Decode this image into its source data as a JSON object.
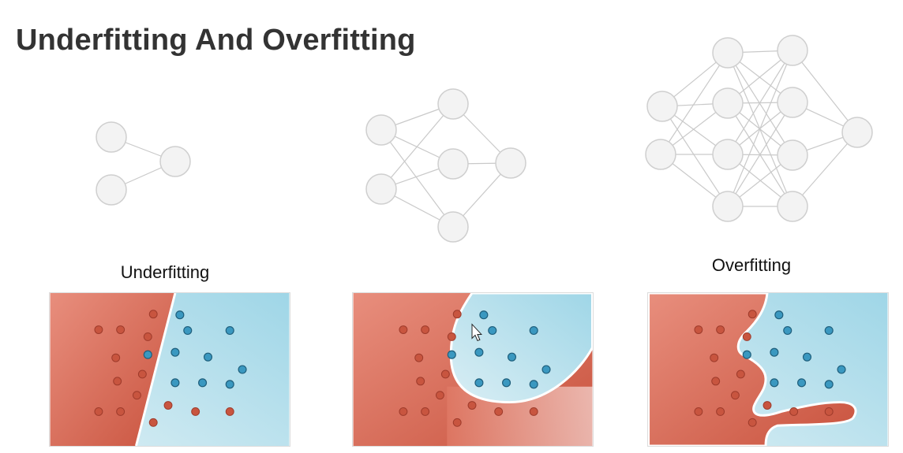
{
  "slide": {
    "title": "Underfitting And Overfitting"
  },
  "labels": {
    "underfitting": "Underfitting",
    "middle": "",
    "overfitting": "Overfitting"
  },
  "networks": [
    {
      "name": "small-network",
      "layers": [
        2,
        1
      ]
    },
    {
      "name": "medium-network",
      "layers": [
        2,
        3,
        1
      ]
    },
    {
      "name": "large-network",
      "layers": [
        2,
        4,
        4,
        1
      ]
    }
  ],
  "colors": {
    "red_class": "#c8553f",
    "blue_class": "#3a98c0",
    "red_region": "#e07a66",
    "blue_region": "#a8dcea",
    "node_fill": "#f3f3f3",
    "edge": "#c9c9c9"
  },
  "panels": [
    {
      "name": "underfitting-panel",
      "boundary": "linear"
    },
    {
      "name": "good-fit-panel",
      "boundary": "smooth-curve"
    },
    {
      "name": "overfitting-panel",
      "boundary": "irregular"
    }
  ]
}
